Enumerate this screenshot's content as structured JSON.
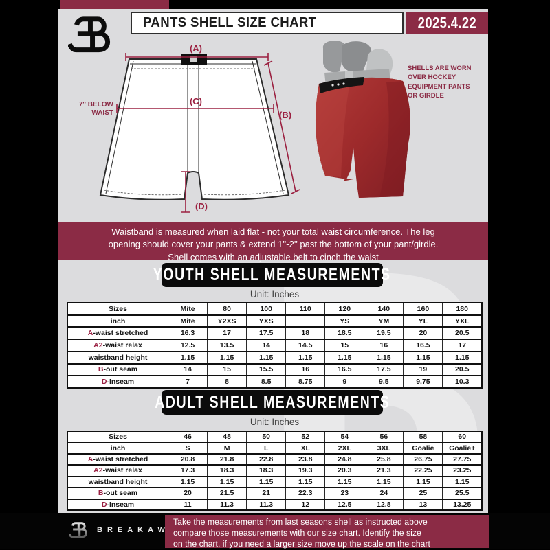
{
  "header": {
    "title": "PANTS SHELL SIZE CHART",
    "date": "2025.4.22"
  },
  "diagram": {
    "label_a": "(A)",
    "label_b": "(B)",
    "label_c": "(C)",
    "label_d": "(D)",
    "waist_note": [
      "7'' BELOW",
      "WAIST"
    ],
    "caption": [
      "SHELLS ARE WORN",
      "OVER HOCKEY",
      "EQUIPMENT PANTS",
      "OR GIRDLE"
    ]
  },
  "notice": {
    "lines": [
      "Waistband is measured when laid flat - not your total waist circumference. The leg",
      "opening should cover your pants & extend 1''-2'' past the bottom of your pant/girdle.",
      "Shell comes with an adjustable belt to cinch the waist"
    ]
  },
  "youth": {
    "title": "YOUTH SHELL MEASUREMENTS",
    "unit": "Unit: Inches",
    "rows": [
      {
        "label_prefix": "",
        "label": "Sizes",
        "values": [
          "Mite",
          "80",
          "100",
          "110",
          "120",
          "140",
          "160",
          "180"
        ]
      },
      {
        "label_prefix": "",
        "label": "inch",
        "values": [
          "Mite",
          "Y2XS",
          "YXS",
          "",
          "YS",
          "YM",
          "YL",
          "YXL"
        ]
      },
      {
        "label_prefix": "A",
        "label": "-waist stretched",
        "values": [
          "16.3",
          "17",
          "17.5",
          "18",
          "18.5",
          "19.5",
          "20",
          "20.5"
        ]
      },
      {
        "label_prefix": "A2",
        "label": "-waist relax",
        "values": [
          "12.5",
          "13.5",
          "14",
          "14.5",
          "15",
          "16",
          "16.5",
          "17"
        ]
      },
      {
        "label_prefix": "",
        "label": "waistband height",
        "values": [
          "1.15",
          "1.15",
          "1.15",
          "1.15",
          "1.15",
          "1.15",
          "1.15",
          "1.15"
        ]
      },
      {
        "label_prefix": "B",
        "label": "-out seam",
        "values": [
          "14",
          "15",
          "15.5",
          "16",
          "16.5",
          "17.5",
          "19",
          "20.5"
        ]
      },
      {
        "label_prefix": "D",
        "label": "-Inseam",
        "values": [
          "7",
          "8",
          "8.5",
          "8.75",
          "9",
          "9.5",
          "9.75",
          "10.3"
        ]
      }
    ]
  },
  "adult": {
    "title": "ADULT SHELL MEASUREMENTS",
    "unit": "Unit: Inches",
    "rows": [
      {
        "label_prefix": "",
        "label": "Sizes",
        "values": [
          "46",
          "48",
          "50",
          "52",
          "54",
          "56",
          "58",
          "60"
        ]
      },
      {
        "label_prefix": "",
        "label": "inch",
        "values": [
          "S",
          "M",
          "L",
          "XL",
          "2XL",
          "3XL",
          "Goalie",
          "Goalie+"
        ]
      },
      {
        "label_prefix": "A",
        "label": "-waist stretched",
        "values": [
          "20.8",
          "21.8",
          "22.8",
          "23.8",
          "24.8",
          "25.8",
          "26.75",
          "27.75"
        ]
      },
      {
        "label_prefix": "A2",
        "label": "-waist relax",
        "values": [
          "17.3",
          "18.3",
          "18.3",
          "19.3",
          "20.3",
          "21.3",
          "22.25",
          "23.25"
        ]
      },
      {
        "label_prefix": "",
        "label": "waistband height",
        "values": [
          "1.15",
          "1.15",
          "1.15",
          "1.15",
          "1.15",
          "1.15",
          "1.15",
          "1.15"
        ]
      },
      {
        "label_prefix": "B",
        "label": "-out seam",
        "values": [
          "20",
          "21.5",
          "21",
          "22.3",
          "23",
          "24",
          "25",
          "25.5"
        ]
      },
      {
        "label_prefix": "D",
        "label": "-Inseam",
        "values": [
          "11",
          "11.3",
          "11.3",
          "12",
          "12.5",
          "12.8",
          "13",
          "13.25"
        ]
      }
    ]
  },
  "footer": {
    "brand": "BREAKAWAY",
    "lines": [
      "Take the measurements from last seasons shell as instructed above",
      "compare those measurements with our size chart. Identify the size",
      "on the chart, if you need a larger size move up the scale on the chart"
    ]
  },
  "colors": {
    "maroon": "#8B2B45",
    "diagram_accent": "#9B2040",
    "page_bg": "#DCDCDE",
    "table_accent": "#9B2143",
    "shell_red": "#A22C2E"
  }
}
